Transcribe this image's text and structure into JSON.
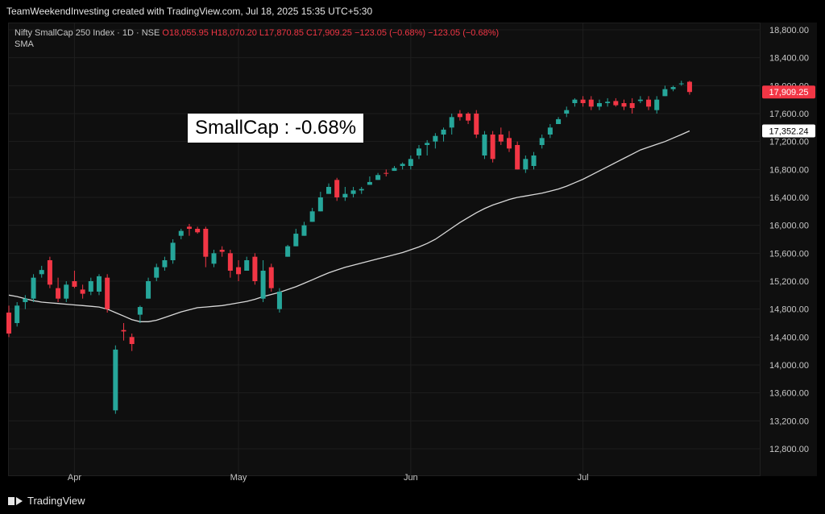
{
  "header": {
    "text": "TeamWeekendInvesting created with TradingView.com, Jul 18, 2025 15:35 UTC+5:30"
  },
  "legend": {
    "name": "Nifty SmallCap 250 Index · 1D · NSE",
    "ohlc": "O18,055.95  H18,070.20  L17,870.85  C17,909.25  −123.05 (−0.68%)  −123.05 (−0.68%)",
    "indicator": "SMA"
  },
  "annotation": {
    "text": "SmallCap : -0.68%"
  },
  "footer": {
    "brand": "TradingView"
  },
  "colors": {
    "up": "#26a69a",
    "down": "#f23645",
    "sma": "#d9d9d9",
    "grid": "#1e1e1e",
    "background": "#0f0f0f"
  },
  "chart_data": {
    "type": "candlestick",
    "ylim": [
      12600,
      18900
    ],
    "y_ticks": [
      18800,
      18400,
      18000,
      17600,
      17200,
      16800,
      16400,
      16000,
      15600,
      15200,
      14800,
      14400,
      14000,
      13600,
      13200,
      12800
    ],
    "y_tick_labels": [
      "18,800.00",
      "18,400.00",
      "18,000.00",
      "17,600.00",
      "17,200.00",
      "16,800.00",
      "16,400.00",
      "16,000.00",
      "15,600.00",
      "15,200.00",
      "14,800.00",
      "14,400.00",
      "14,000.00",
      "13,600.00",
      "13,200.00",
      "12,800.00"
    ],
    "x_ticks": [
      {
        "label": "Apr",
        "index": 8
      },
      {
        "label": "May",
        "index": 28
      },
      {
        "label": "Jun",
        "index": 49
      },
      {
        "label": "Jul",
        "index": 70
      }
    ],
    "last_price": "17,909.25",
    "sma_price": "17,352.24",
    "candles": [
      {
        "o": 14750,
        "h": 14850,
        "l": 14400,
        "c": 14450
      },
      {
        "o": 14600,
        "h": 14900,
        "l": 14550,
        "c": 14850
      },
      {
        "o": 14900,
        "h": 15000,
        "l": 14800,
        "c": 14950
      },
      {
        "o": 14950,
        "h": 15300,
        "l": 14900,
        "c": 15250
      },
      {
        "o": 15300,
        "h": 15420,
        "l": 15250,
        "c": 15360
      },
      {
        "o": 15500,
        "h": 15550,
        "l": 15100,
        "c": 15150
      },
      {
        "o": 15100,
        "h": 15250,
        "l": 14900,
        "c": 14950
      },
      {
        "o": 14950,
        "h": 15200,
        "l": 14900,
        "c": 15150
      },
      {
        "o": 15200,
        "h": 15350,
        "l": 15100,
        "c": 15120
      },
      {
        "o": 15080,
        "h": 15150,
        "l": 14950,
        "c": 15020
      },
      {
        "o": 15050,
        "h": 15250,
        "l": 15000,
        "c": 15200
      },
      {
        "o": 15050,
        "h": 15300,
        "l": 15000,
        "c": 15270
      },
      {
        "o": 15250,
        "h": 15300,
        "l": 14750,
        "c": 14800
      },
      {
        "o": 13350,
        "h": 14280,
        "l": 13300,
        "c": 14220
      },
      {
        "o": 14500,
        "h": 14600,
        "l": 14350,
        "c": 14480
      },
      {
        "o": 14400,
        "h": 14450,
        "l": 14200,
        "c": 14300
      },
      {
        "o": 14720,
        "h": 14850,
        "l": 14600,
        "c": 14830
      },
      {
        "o": 14950,
        "h": 15250,
        "l": 14950,
        "c": 15200
      },
      {
        "o": 15250,
        "h": 15450,
        "l": 15200,
        "c": 15400
      },
      {
        "o": 15400,
        "h": 15550,
        "l": 15350,
        "c": 15500
      },
      {
        "o": 15500,
        "h": 15800,
        "l": 15450,
        "c": 15750
      },
      {
        "o": 15850,
        "h": 15950,
        "l": 15800,
        "c": 15920
      },
      {
        "o": 15980,
        "h": 16020,
        "l": 15850,
        "c": 15950
      },
      {
        "o": 15950,
        "h": 15980,
        "l": 15880,
        "c": 15900
      },
      {
        "o": 15950,
        "h": 15980,
        "l": 15400,
        "c": 15550
      },
      {
        "o": 15450,
        "h": 15650,
        "l": 15400,
        "c": 15600
      },
      {
        "o": 15650,
        "h": 15700,
        "l": 15550,
        "c": 15620
      },
      {
        "o": 15600,
        "h": 15650,
        "l": 15250,
        "c": 15350
      },
      {
        "o": 15400,
        "h": 15500,
        "l": 15200,
        "c": 15300
      },
      {
        "o": 15350,
        "h": 15550,
        "l": 15350,
        "c": 15500
      },
      {
        "o": 15550,
        "h": 15600,
        "l": 15150,
        "c": 15200
      },
      {
        "o": 14950,
        "h": 15500,
        "l": 14900,
        "c": 15350
      },
      {
        "o": 15400,
        "h": 15450,
        "l": 15050,
        "c": 15100
      },
      {
        "o": 14800,
        "h": 15100,
        "l": 14750,
        "c": 15050
      },
      {
        "o": 15550,
        "h": 15720,
        "l": 15550,
        "c": 15700
      },
      {
        "o": 15700,
        "h": 15950,
        "l": 15700,
        "c": 15880
      },
      {
        "o": 15850,
        "h": 16050,
        "l": 15850,
        "c": 16000
      },
      {
        "o": 16050,
        "h": 16250,
        "l": 16050,
        "c": 16200
      },
      {
        "o": 16200,
        "h": 16480,
        "l": 16200,
        "c": 16400
      },
      {
        "o": 16450,
        "h": 16600,
        "l": 16450,
        "c": 16550
      },
      {
        "o": 16650,
        "h": 16680,
        "l": 16350,
        "c": 16400
      },
      {
        "o": 16400,
        "h": 16550,
        "l": 16350,
        "c": 16450
      },
      {
        "o": 16450,
        "h": 16550,
        "l": 16400,
        "c": 16500
      },
      {
        "o": 16500,
        "h": 16550,
        "l": 16450,
        "c": 16520
      },
      {
        "o": 16580,
        "h": 16700,
        "l": 16580,
        "c": 16620
      },
      {
        "o": 16650,
        "h": 16750,
        "l": 16650,
        "c": 16720
      },
      {
        "o": 16750,
        "h": 16800,
        "l": 16700,
        "c": 16740
      },
      {
        "o": 16780,
        "h": 16850,
        "l": 16780,
        "c": 16820
      },
      {
        "o": 16850,
        "h": 16900,
        "l": 16800,
        "c": 16880
      },
      {
        "o": 16850,
        "h": 17000,
        "l": 16800,
        "c": 16950
      },
      {
        "o": 17000,
        "h": 17150,
        "l": 16950,
        "c": 17100
      },
      {
        "o": 17150,
        "h": 17220,
        "l": 17000,
        "c": 17180
      },
      {
        "o": 17200,
        "h": 17320,
        "l": 17100,
        "c": 17280
      },
      {
        "o": 17300,
        "h": 17400,
        "l": 17200,
        "c": 17370
      },
      {
        "o": 17400,
        "h": 17600,
        "l": 17300,
        "c": 17550
      },
      {
        "o": 17600,
        "h": 17650,
        "l": 17500,
        "c": 17550
      },
      {
        "o": 17600,
        "h": 17620,
        "l": 17450,
        "c": 17500
      },
      {
        "o": 17600,
        "h": 17650,
        "l": 17250,
        "c": 17300
      },
      {
        "o": 17000,
        "h": 17350,
        "l": 16950,
        "c": 17300
      },
      {
        "o": 17300,
        "h": 17350,
        "l": 16900,
        "c": 16950
      },
      {
        "o": 17300,
        "h": 17400,
        "l": 17150,
        "c": 17200
      },
      {
        "o": 17250,
        "h": 17350,
        "l": 17050,
        "c": 17100
      },
      {
        "o": 17150,
        "h": 17200,
        "l": 16800,
        "c": 16800
      },
      {
        "o": 16800,
        "h": 17000,
        "l": 16750,
        "c": 16950
      },
      {
        "o": 16850,
        "h": 17050,
        "l": 16800,
        "c": 17000
      },
      {
        "o": 17150,
        "h": 17300,
        "l": 17100,
        "c": 17250
      },
      {
        "o": 17300,
        "h": 17450,
        "l": 17250,
        "c": 17400
      },
      {
        "o": 17450,
        "h": 17550,
        "l": 17450,
        "c": 17520
      },
      {
        "o": 17600,
        "h": 17700,
        "l": 17550,
        "c": 17650
      },
      {
        "o": 17750,
        "h": 17820,
        "l": 17700,
        "c": 17800
      },
      {
        "o": 17800,
        "h": 17850,
        "l": 17700,
        "c": 17750
      },
      {
        "o": 17800,
        "h": 17850,
        "l": 17650,
        "c": 17700
      },
      {
        "o": 17700,
        "h": 17800,
        "l": 17650,
        "c": 17750
      },
      {
        "o": 17750,
        "h": 17820,
        "l": 17700,
        "c": 17770
      },
      {
        "o": 17780,
        "h": 17820,
        "l": 17700,
        "c": 17720
      },
      {
        "o": 17750,
        "h": 17800,
        "l": 17650,
        "c": 17700
      },
      {
        "o": 17750,
        "h": 17820,
        "l": 17600,
        "c": 17680
      },
      {
        "o": 17780,
        "h": 17850,
        "l": 17750,
        "c": 17800
      },
      {
        "o": 17800,
        "h": 17850,
        "l": 17650,
        "c": 17700
      },
      {
        "o": 17650,
        "h": 17850,
        "l": 17600,
        "c": 17800
      },
      {
        "o": 17850,
        "h": 18000,
        "l": 17850,
        "c": 17950
      },
      {
        "o": 17950,
        "h": 18000,
        "l": 17920,
        "c": 17980
      },
      {
        "o": 18030,
        "h": 18070,
        "l": 18000,
        "c": 18032
      },
      {
        "o": 18056,
        "h": 18070,
        "l": 17871,
        "c": 17909
      }
    ],
    "sma": [
      15000,
      14980,
      14950,
      14920,
      14900,
      14890,
      14880,
      14870,
      14860,
      14850,
      14840,
      14830,
      14800,
      14750,
      14700,
      14650,
      14620,
      14620,
      14640,
      14680,
      14720,
      14760,
      14790,
      14820,
      14830,
      14840,
      14850,
      14870,
      14890,
      14910,
      14940,
      14980,
      15010,
      15040,
      15080,
      15120,
      15170,
      15220,
      15270,
      15320,
      15360,
      15400,
      15430,
      15460,
      15490,
      15520,
      15550,
      15580,
      15610,
      15650,
      15690,
      15740,
      15800,
      15880,
      15960,
      16040,
      16110,
      16180,
      16240,
      16290,
      16330,
      16370,
      16400,
      16420,
      16440,
      16460,
      16490,
      16520,
      16560,
      16610,
      16660,
      16720,
      16780,
      16840,
      16900,
      16960,
      17020,
      17080,
      17120,
      17160,
      17200,
      17250,
      17300,
      17352
    ]
  }
}
